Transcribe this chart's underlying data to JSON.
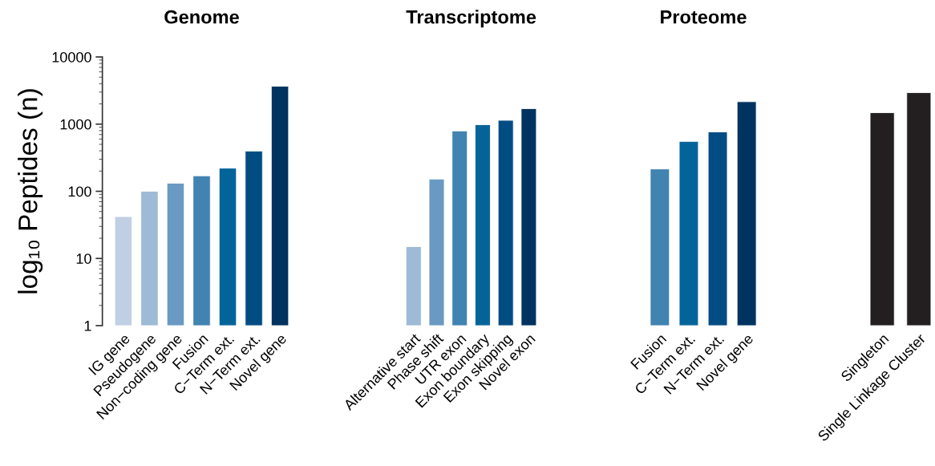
{
  "chart_data": [
    {
      "type": "bar",
      "title": "Genome",
      "ylabel": "log₁₀ Peptides (n)",
      "categories": [
        "IG gene",
        "Pseudogene",
        "Non−coding gene",
        "Fusion",
        "C−Term ext.",
        "N−Term ext.",
        "Novel gene"
      ],
      "values": [
        42,
        100,
        132,
        170,
        221,
        397,
        3660
      ],
      "colors": [
        "#c0cfe3",
        "#9dbad6",
        "#6a9ac3",
        "#4183b1",
        "#03649a",
        "#024c84",
        "#00335f"
      ],
      "log": true,
      "ylim": [
        1,
        10000
      ],
      "yticks": [
        1,
        10,
        100,
        1000,
        10000
      ],
      "grid": false
    },
    {
      "type": "bar",
      "title": "Transcriptome",
      "categories": [
        "Alternative start",
        "Phase shift",
        "UTR exon",
        "Exon boundary",
        "Exon skipping",
        "Novel exon"
      ],
      "values": [
        15,
        152,
        790,
        980,
        1140,
        1700
      ],
      "colors": [
        "#9dbad6",
        "#6a9ac3",
        "#4183b1",
        "#03649a",
        "#024c84",
        "#00335f"
      ],
      "log": true,
      "ylim": [
        1,
        10000
      ],
      "tick_labels": "x",
      "grid": false
    },
    {
      "type": "bar",
      "title": "Proteome",
      "categories": [
        "Fusion",
        "C−Term ext.",
        "N−Term ext.",
        "Novel gene"
      ],
      "values": [
        215,
        552,
        767,
        2155
      ],
      "colors": [
        "#4183b1",
        "#03649a",
        "#024c84",
        "#00335f"
      ],
      "log": true,
      "ylim": [
        1,
        10000
      ],
      "tick_labels": "x",
      "grid": false
    },
    {
      "type": "bar",
      "categories": [
        "Singleton",
        "Single Linkage Cluster"
      ],
      "values": [
        1480,
        2940
      ],
      "colors": [
        "#231f20",
        "#231f20"
      ],
      "log": true,
      "ylim": [
        1,
        10000
      ],
      "tick_labels": "x",
      "grid": false
    }
  ]
}
